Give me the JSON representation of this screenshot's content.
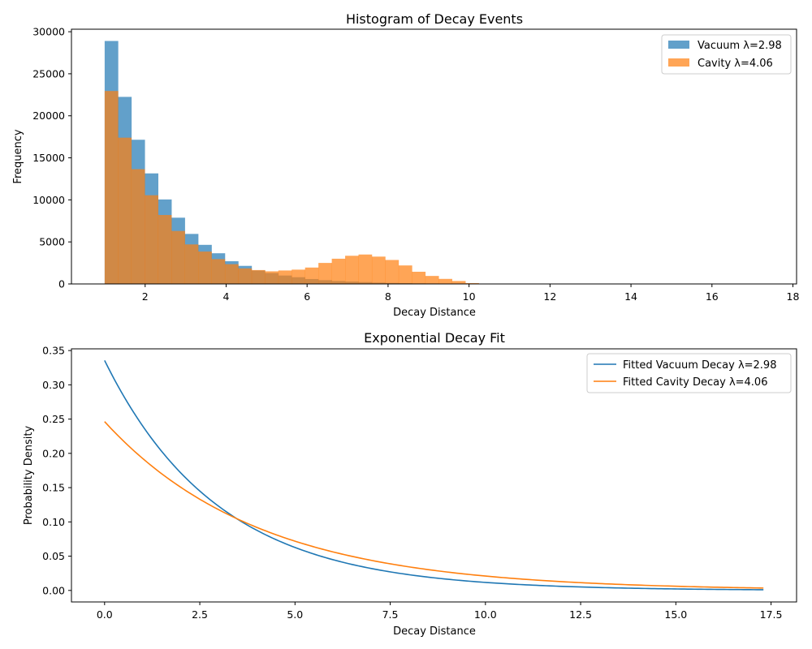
{
  "colors": {
    "vacuum": "#1f77b4",
    "cavity": "#ff7f0e",
    "axes": "#000000",
    "legend_border": "#cccccc"
  },
  "chart_data": [
    {
      "type": "bar",
      "subtype": "histogram",
      "title": "Histogram of Decay Events",
      "xlabel": "Decay Distance",
      "ylabel": "Frequency",
      "xlim": [
        0.18,
        18.09
      ],
      "ylim": [
        0,
        30300
      ],
      "xticks": [
        2,
        4,
        6,
        8,
        10,
        12,
        14,
        16,
        18
      ],
      "yticks": [
        0,
        5000,
        10000,
        15000,
        20000,
        25000,
        30000
      ],
      "grid": false,
      "legend_position": "top-right",
      "bin_width": 0.33,
      "series": [
        {
          "name": "Vacuum λ=2.98",
          "color": "#1f77b4",
          "alpha": 0.7,
          "bin_start": 1.0,
          "values": [
            28900,
            22250,
            17150,
            13150,
            10050,
            7880,
            5950,
            4650,
            3650,
            2700,
            2150,
            1600,
            1300,
            1000,
            800,
            580,
            450,
            350,
            280,
            220,
            160,
            120,
            100,
            70,
            55,
            40,
            30,
            20,
            15,
            10,
            8,
            6,
            4,
            3,
            2,
            2,
            1,
            1,
            1,
            1,
            0,
            0,
            0,
            0,
            0,
            0,
            0,
            0,
            0,
            0
          ]
        },
        {
          "name": "Cavity λ=4.06",
          "color": "#ff7f0e",
          "alpha": 0.7,
          "bin_start": 1.0,
          "values": [
            22950,
            17400,
            13650,
            10550,
            8200,
            6300,
            4700,
            3850,
            2950,
            2350,
            1850,
            1650,
            1500,
            1600,
            1700,
            1950,
            2500,
            3000,
            3350,
            3500,
            3250,
            2850,
            2200,
            1450,
            950,
            600,
            350,
            100,
            30,
            10,
            5,
            3,
            2,
            1,
            1,
            1,
            1,
            0,
            0,
            0,
            0,
            0,
            0,
            0,
            0,
            0,
            0,
            0,
            0,
            0
          ]
        }
      ]
    },
    {
      "type": "line",
      "title": "Exponential Decay Fit",
      "xlabel": "Decay Distance",
      "ylabel": "Probability Density",
      "xlim": [
        -0.87,
        18.17
      ],
      "ylim": [
        -0.0168,
        0.3525
      ],
      "xticks": [
        0.0,
        2.5,
        5.0,
        7.5,
        10.0,
        12.5,
        15.0,
        17.5
      ],
      "yticks": [
        0.0,
        0.05,
        0.1,
        0.15,
        0.2,
        0.25,
        0.3,
        0.35
      ],
      "grid": false,
      "legend_position": "top-right",
      "x_range": [
        0,
        17.3
      ],
      "series": [
        {
          "name": "Fitted Vacuum Decay λ=2.98",
          "color": "#1f77b4",
          "lambda": 2.98
        },
        {
          "name": "Fitted Cavity Decay λ=4.06",
          "color": "#ff7f0e",
          "lambda": 4.06
        }
      ]
    }
  ]
}
